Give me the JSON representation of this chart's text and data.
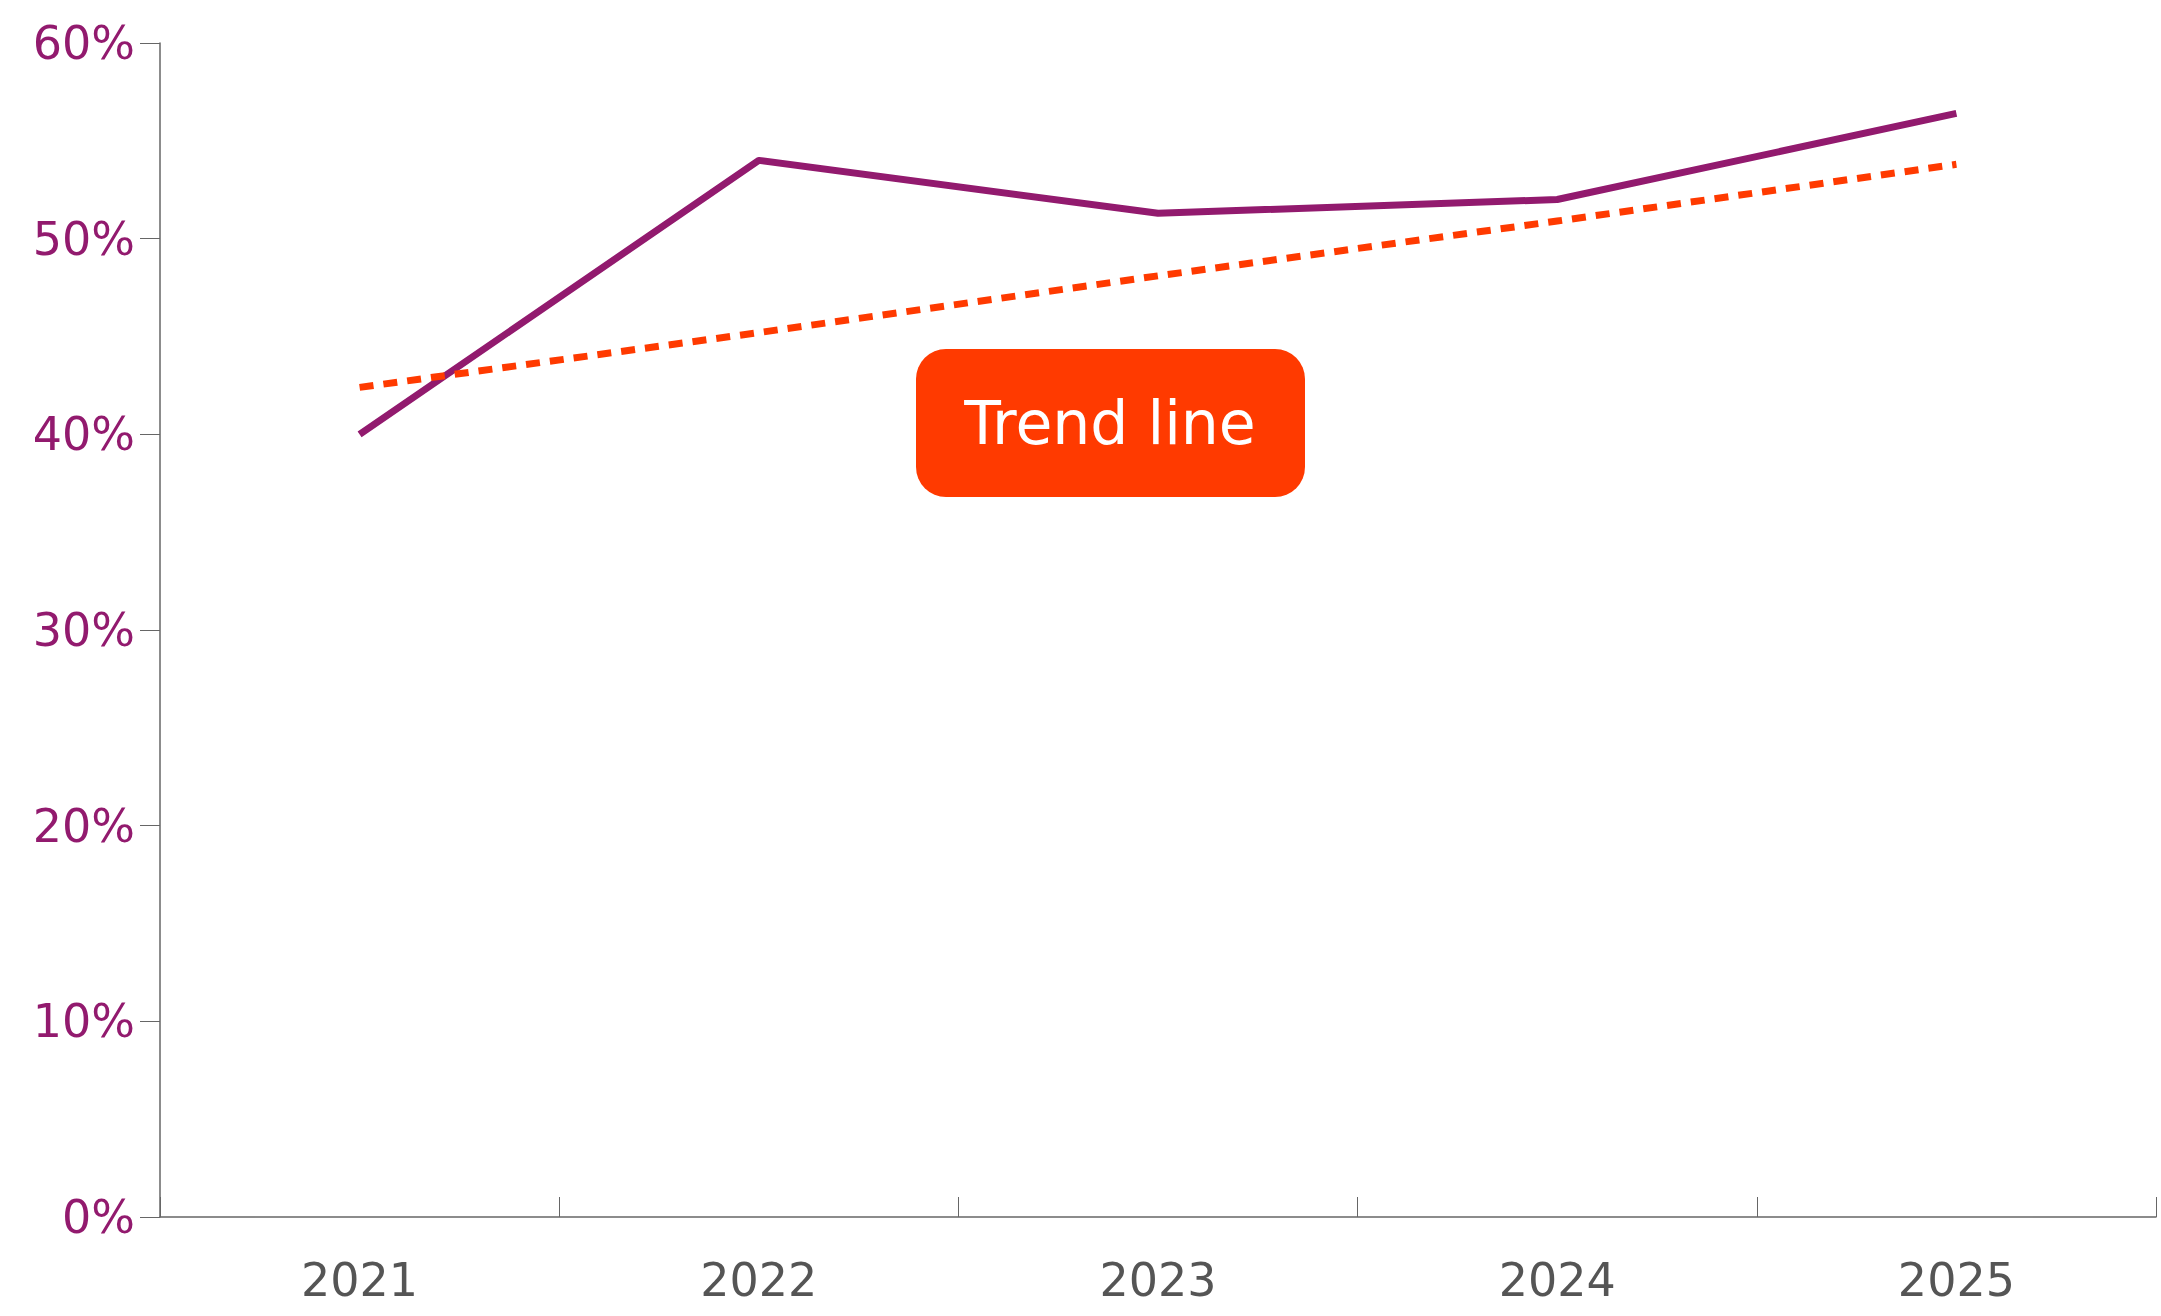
{
  "chart_data": {
    "type": "line",
    "categories": [
      "2021",
      "2022",
      "2023",
      "2024",
      "2025"
    ],
    "series": [
      {
        "color": "#921a6e",
        "values": [
          40,
          54,
          51.3,
          52,
          56.4
        ]
      },
      {
        "type": "line",
        "color": "#ff3a00",
        "line_style": "dashed",
        "values": [
          42.4,
          45.2,
          48.1,
          50.9,
          53.8
        ]
      }
    ],
    "ylim": [
      0,
      60
    ],
    "yticks": [
      {
        "value": 0,
        "label": "0%"
      },
      {
        "value": 10,
        "label": "10%"
      },
      {
        "value": 20,
        "label": "20%"
      },
      {
        "value": 30,
        "label": "30%"
      },
      {
        "value": 40,
        "label": "40%"
      },
      {
        "value": 50,
        "label": "50%"
      },
      {
        "value": 60,
        "label": "60%"
      }
    ],
    "annotations": [
      "Trend line"
    ],
    "grid": false,
    "marker": "none",
    "line_style": "solid"
  }
}
